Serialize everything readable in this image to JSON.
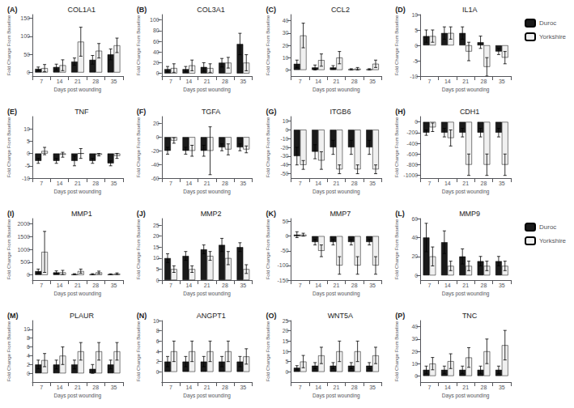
{
  "chart_data": [
    {
      "type": "bar",
      "title": "COL1A1",
      "annotation": "(A)",
      "x_label": "Days post wounding",
      "y_label": "Fold Change From Baseline",
      "categories": [
        "7",
        "14",
        "21",
        "28",
        "35"
      ],
      "series": [
        {
          "name": "Duroc",
          "color": "#1a1a1a",
          "values": [
            10,
            15,
            30,
            35,
            50
          ],
          "errors": [
            5,
            8,
            10,
            12,
            15
          ]
        },
        {
          "name": "Yorkshire",
          "color": "#f0f0f0",
          "values": [
            12,
            20,
            85,
            60,
            75
          ],
          "errors": [
            10,
            15,
            40,
            20,
            20
          ]
        }
      ],
      "ylim": [
        -10,
        160
      ],
      "yticks": [
        0,
        50,
        100,
        150
      ],
      "grid": false,
      "legend": false
    },
    {
      "type": "bar",
      "title": "COL3A1",
      "annotation": "(B)",
      "x_label": "Days post wounding",
      "y_label": "Fold Change From Baseline",
      "categories": [
        "7",
        "14",
        "21",
        "28",
        "35"
      ],
      "series": [
        {
          "name": "Duroc",
          "color": "#1a1a1a",
          "values": [
            8,
            8,
            12,
            20,
            55
          ],
          "errors": [
            5,
            5,
            8,
            8,
            20
          ]
        },
        {
          "name": "Yorkshire",
          "color": "#f0f0f0",
          "values": [
            10,
            15,
            10,
            20,
            20
          ],
          "errors": [
            8,
            10,
            8,
            10,
            15
          ]
        }
      ],
      "ylim": [
        -5,
        110
      ],
      "yticks": [
        0,
        20,
        40,
        60,
        80,
        100
      ],
      "grid": false,
      "legend": false
    },
    {
      "type": "bar",
      "title": "CCL2",
      "annotation": "(C)",
      "x_label": "Days post wounding",
      "y_label": "Fold Change From Baseline",
      "categories": [
        "7",
        "14",
        "21",
        "28",
        "35"
      ],
      "series": [
        {
          "name": "Duroc",
          "color": "#1a1a1a",
          "values": [
            5,
            2,
            2,
            0.5,
            0.5
          ],
          "errors": [
            3,
            2,
            1.5,
            0.5,
            0.5
          ]
        },
        {
          "name": "Yorkshire",
          "color": "#f0f0f0",
          "values": [
            28,
            8,
            10,
            1,
            5
          ],
          "errors": [
            10,
            5,
            5,
            1,
            3
          ]
        }
      ],
      "ylim": [
        -5,
        45
      ],
      "yticks": [
        0,
        10,
        20,
        30,
        40
      ],
      "grid": false,
      "legend": false
    },
    {
      "type": "bar",
      "title": "IL1A",
      "annotation": "(D)",
      "x_label": "Days post wounding",
      "y_label": "Fold Change From Baseline",
      "categories": [
        "7",
        "14",
        "21",
        "28",
        "35"
      ],
      "series": [
        {
          "name": "Duroc",
          "color": "#1a1a1a",
          "values": [
            3,
            4,
            4,
            1,
            -2
          ],
          "errors": [
            2,
            2,
            2,
            2,
            1
          ]
        },
        {
          "name": "Yorkshire",
          "color": "#f0f0f0",
          "values": [
            3,
            4,
            -2,
            -7,
            -4
          ],
          "errors": [
            2,
            2,
            3,
            3,
            2
          ]
        }
      ],
      "ylim": [
        -10,
        10
      ],
      "yticks": [
        -10,
        -5,
        0,
        5,
        10
      ],
      "grid": false,
      "legend": "right"
    },
    {
      "type": "bar",
      "title": "TNF",
      "annotation": "(E)",
      "x_label": "Days post wounding",
      "y_label": "Fold Change From Baseline",
      "categories": [
        "7",
        "14",
        "21",
        "28",
        "35"
      ],
      "series": [
        {
          "name": "Duroc",
          "color": "#1a1a1a",
          "values": [
            -3,
            -3,
            -3,
            -3,
            -4
          ],
          "errors": [
            1,
            1,
            2,
            1,
            1
          ]
        },
        {
          "name": "Yorkshire",
          "color": "#f0f0f0",
          "values": [
            1,
            -0.5,
            0,
            -0.5,
            -1
          ],
          "errors": [
            1.5,
            1,
            2,
            0.5,
            1
          ]
        }
      ],
      "ylim": [
        -10,
        15
      ],
      "yticks": [
        -10,
        -5,
        0,
        5,
        10
      ],
      "grid": false,
      "legend": false
    },
    {
      "type": "bar",
      "title": "TGFA",
      "annotation": "(F)",
      "x_label": "Days post wounding",
      "y_label": "Fold Change From Baseline",
      "categories": [
        "7",
        "14",
        "21",
        "28",
        "35"
      ],
      "series": [
        {
          "name": "Duroc",
          "color": "#1a1a1a",
          "values": [
            -20,
            -20,
            -20,
            -15,
            -15
          ],
          "errors": [
            5,
            5,
            8,
            5,
            5
          ]
        },
        {
          "name": "Yorkshire",
          "color": "#f0f0f0",
          "values": [
            -5,
            -20,
            -20,
            -18,
            -18
          ],
          "errors": [
            4,
            8,
            35,
            8,
            5
          ]
        }
      ],
      "ylim": [
        -60,
        30
      ],
      "yticks": [
        -60,
        -40,
        -20,
        0,
        20
      ],
      "grid": false,
      "legend": false
    },
    {
      "type": "bar",
      "title": "ITGB6",
      "annotation": "(G)",
      "x_label": "Days post wounding",
      "y_label": "Fold Change From Baseline",
      "categories": [
        "7",
        "14",
        "21",
        "28",
        "35"
      ],
      "series": [
        {
          "name": "Duroc",
          "color": "#1a1a1a",
          "values": [
            -30,
            -25,
            -20,
            -20,
            -20
          ],
          "errors": [
            10,
            8,
            8,
            8,
            8
          ]
        },
        {
          "name": "Yorkshire",
          "color": "#f0f0f0",
          "values": [
            -40,
            -35,
            -45,
            -45,
            -45
          ],
          "errors": [
            5,
            10,
            5,
            5,
            5
          ]
        }
      ],
      "ylim": [
        -55,
        15
      ],
      "yticks": [
        -50,
        -40,
        -30,
        -20,
        -10,
        0,
        10
      ],
      "grid": false,
      "legend": false
    },
    {
      "type": "bar",
      "title": "CDH1",
      "annotation": "(H)",
      "x_label": "Days post wounding",
      "y_label": "Fold Change From Baseline",
      "categories": [
        "7",
        "14",
        "21",
        "28",
        "35"
      ],
      "series": [
        {
          "name": "Duroc",
          "color": "#1a1a1a",
          "values": [
            -200,
            -200,
            -200,
            -200,
            -200
          ],
          "errors": [
            50,
            80,
            80,
            80,
            80
          ]
        },
        {
          "name": "Yorkshire",
          "color": "#f0f0f0",
          "values": [
            -100,
            -300,
            -800,
            -800,
            -800
          ],
          "errors": [
            80,
            150,
            200,
            200,
            200
          ]
        }
      ],
      "ylim": [
        -1050,
        100
      ],
      "yticks": [
        -1000,
        -800,
        -600,
        -400,
        -200,
        0
      ],
      "grid": false,
      "legend": false
    },
    {
      "type": "bar",
      "title": "MMP1",
      "annotation": "(I)",
      "x_label": "Days post wounding",
      "y_label": "Fold Change From Baseline",
      "categories": [
        "7",
        "14",
        "21",
        "28",
        "35"
      ],
      "series": [
        {
          "name": "Duroc",
          "color": "#1a1a1a",
          "values": [
            150,
            100,
            30,
            30,
            30
          ],
          "errors": [
            80,
            60,
            20,
            20,
            15
          ]
        },
        {
          "name": "Yorkshire",
          "color": "#f0f0f0",
          "values": [
            900,
            100,
            150,
            100,
            50
          ],
          "errors": [
            800,
            80,
            80,
            50,
            30
          ]
        }
      ],
      "ylim": [
        -200,
        2200
      ],
      "yticks": [
        0,
        500,
        1000,
        1500,
        2000
      ],
      "grid": false,
      "legend": false
    },
    {
      "type": "bar",
      "title": "MMP2",
      "annotation": "(J)",
      "x_label": "Days post wounding",
      "y_label": "Fold Change From Baseline",
      "categories": [
        "7",
        "14",
        "21",
        "28",
        "35"
      ],
      "series": [
        {
          "name": "Duroc",
          "color": "#1a1a1a",
          "values": [
            10,
            11,
            14,
            16,
            15
          ],
          "errors": [
            2,
            2,
            2,
            3,
            2
          ]
        },
        {
          "name": "Yorkshire",
          "color": "#f0f0f0",
          "values": [
            5,
            5,
            11,
            10,
            5
          ],
          "errors": [
            1.5,
            1.5,
            2,
            3,
            2
          ]
        }
      ],
      "ylim": [
        0,
        28
      ],
      "yticks": [
        0,
        5,
        10,
        15,
        20,
        25
      ],
      "grid": false,
      "legend": false
    },
    {
      "type": "bar",
      "title": "MMP7",
      "annotation": "(K)",
      "x_label": "Days post wounding",
      "y_label": "Fold Change From Baseline",
      "categories": [
        "7",
        "14",
        "21",
        "28",
        "35"
      ],
      "series": [
        {
          "name": "Duroc",
          "color": "#1a1a1a",
          "values": [
            5,
            -20,
            -20,
            -20,
            -20
          ],
          "errors": [
            10,
            10,
            10,
            10,
            10
          ]
        },
        {
          "name": "Yorkshire",
          "color": "#f0f0f0",
          "values": [
            5,
            -50,
            -100,
            -100,
            -100
          ],
          "errors": [
            5,
            20,
            30,
            30,
            30
          ]
        }
      ],
      "ylim": [
        -150,
        60
      ],
      "yticks": [
        -150,
        -100,
        -50,
        0,
        50
      ],
      "grid": false,
      "legend": false
    },
    {
      "type": "bar",
      "title": "MMP9",
      "annotation": "(L)",
      "x_label": "Days post wounding",
      "y_label": "Fold Change From Baseline",
      "categories": [
        "7",
        "14",
        "21",
        "28",
        "35"
      ],
      "series": [
        {
          "name": "Duroc",
          "color": "#1a1a1a",
          "values": [
            40,
            35,
            20,
            15,
            15
          ],
          "errors": [
            15,
            12,
            8,
            5,
            5
          ]
        },
        {
          "name": "Yorkshire",
          "color": "#f0f0f0",
          "values": [
            20,
            10,
            10,
            10,
            10
          ],
          "errors": [
            10,
            5,
            5,
            5,
            5
          ]
        }
      ],
      "ylim": [
        -5,
        60
      ],
      "yticks": [
        0,
        20,
        40,
        60
      ],
      "grid": false,
      "legend": "right"
    },
    {
      "type": "bar",
      "title": "PLAUR",
      "annotation": "(M)",
      "x_label": "Days post wounding",
      "y_label": "Fold Change From Baseline",
      "categories": [
        "7",
        "14",
        "21",
        "28",
        "35"
      ],
      "series": [
        {
          "name": "Duroc",
          "color": "#1a1a1a",
          "values": [
            2,
            2,
            2,
            1,
            2
          ],
          "errors": [
            1,
            1,
            1,
            1,
            1
          ]
        },
        {
          "name": "Yorkshire",
          "color": "#f0f0f0",
          "values": [
            3,
            4,
            5,
            5,
            5
          ],
          "errors": [
            1.5,
            2,
            2,
            2,
            2
          ]
        }
      ],
      "ylim": [
        -2,
        12
      ],
      "yticks": [
        0,
        2,
        4,
        6,
        8,
        10
      ],
      "grid": false,
      "legend": false
    },
    {
      "type": "bar",
      "title": "ANGPT1",
      "annotation": "(N)",
      "x_label": "Days post wounding",
      "y_label": "Fold Change From Baseline",
      "categories": [
        "7",
        "14",
        "21",
        "28",
        "35"
      ],
      "series": [
        {
          "name": "Duroc",
          "color": "#1a1a1a",
          "values": [
            2,
            2,
            2,
            2,
            2
          ],
          "errors": [
            1,
            1,
            1,
            1,
            1
          ]
        },
        {
          "name": "Yorkshire",
          "color": "#f0f0f0",
          "values": [
            4,
            4,
            4,
            4,
            3
          ],
          "errors": [
            2,
            2,
            2,
            2,
            1.5
          ]
        }
      ],
      "ylim": [
        -2,
        10
      ],
      "yticks": [
        0,
        2,
        4,
        6,
        8,
        10
      ],
      "grid": false,
      "legend": false
    },
    {
      "type": "bar",
      "title": "WNT5A",
      "annotation": "(O)",
      "x_label": "Days post wounding",
      "y_label": "Fold Change From Baseline",
      "categories": [
        "7",
        "14",
        "21",
        "28",
        "35"
      ],
      "series": [
        {
          "name": "Duroc",
          "color": "#1a1a1a",
          "values": [
            2,
            3,
            3,
            3,
            3
          ],
          "errors": [
            1,
            1.5,
            1.5,
            1.5,
            1.5
          ]
        },
        {
          "name": "Yorkshire",
          "color": "#f0f0f0",
          "values": [
            5,
            8,
            10,
            10,
            8
          ],
          "errors": [
            3,
            4,
            5,
            5,
            4
          ]
        }
      ],
      "ylim": [
        -5,
        25
      ],
      "yticks": [
        0,
        5,
        10,
        15,
        20,
        25
      ],
      "grid": false,
      "legend": false
    },
    {
      "type": "bar",
      "title": "TNC",
      "annotation": "(P)",
      "x_label": "Days post wounding",
      "y_label": "Fold Change From Baseline",
      "categories": [
        "7",
        "14",
        "21",
        "28",
        "35"
      ],
      "series": [
        {
          "name": "Duroc",
          "color": "#1a1a1a",
          "values": [
            5,
            5,
            5,
            5,
            5
          ],
          "errors": [
            3,
            3,
            3,
            3,
            3
          ]
        },
        {
          "name": "Yorkshire",
          "color": "#f0f0f0",
          "values": [
            10,
            12,
            15,
            20,
            25
          ],
          "errors": [
            5,
            6,
            8,
            10,
            12
          ]
        }
      ],
      "ylim": [
        -5,
        45
      ],
      "yticks": [
        0,
        10,
        20,
        30,
        40
      ],
      "grid": false,
      "legend": false
    }
  ]
}
